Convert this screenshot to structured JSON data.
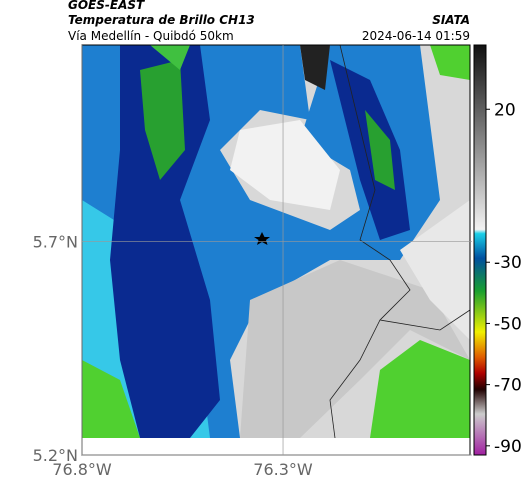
{
  "header": {
    "agency": "GOES-EAST",
    "title": "Temperatura de Brillo CH13",
    "source": "SIATA",
    "subtitle": "Vía Medellín - Quibdó 50km",
    "timestamp": "2024-06-14 01:59"
  },
  "map": {
    "xlim": [
      -76.8,
      -75.83
    ],
    "ylim": [
      5.2,
      6.16
    ],
    "xticks": [
      {
        "value": -76.8,
        "label": "76.8°W"
      },
      {
        "value": -76.3,
        "label": "76.3°W"
      }
    ],
    "yticks": [
      {
        "value": 5.2,
        "label": "5.2°N"
      },
      {
        "value": 5.7,
        "label": "5.7°N"
      }
    ]
  },
  "colorbar": {
    "lim": [
      -93,
      41
    ],
    "ticks": [
      20,
      -30,
      -50,
      -70,
      -90
    ]
  }
}
